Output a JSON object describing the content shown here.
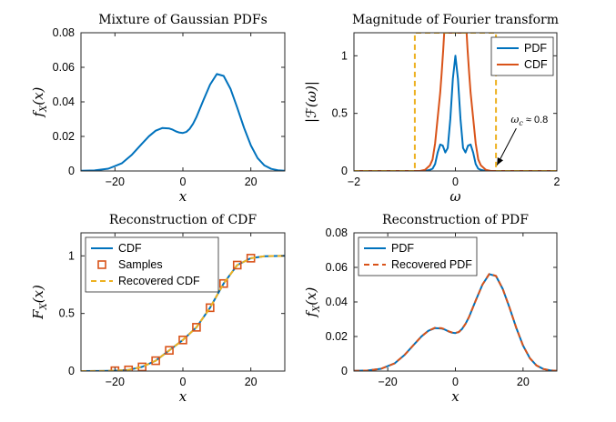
{
  "colors": {
    "blue": "#0072BD",
    "orange": "#D95319",
    "yellow": "#EDB120",
    "axis": "#262626"
  },
  "chart_data": [
    {
      "type": "line",
      "title": "Mixture of Gaussian PDFs",
      "xlabel": "x",
      "ylabel": "f_X(x)",
      "xlim": [
        -30,
        30
      ],
      "ylim": [
        0,
        0.08
      ],
      "xticks": [
        -20,
        0,
        20
      ],
      "yticks": [
        0,
        0.02,
        0.04,
        0.06,
        0.08
      ],
      "grid": false,
      "legend": null,
      "series": [
        {
          "name": "",
          "color": "#0072BD",
          "style": "solid",
          "x": [
            -30,
            -26,
            -22,
            -18,
            -15,
            -12,
            -10,
            -8,
            -6,
            -4,
            -3,
            -2,
            -1,
            0,
            1,
            2,
            3,
            4,
            6,
            8,
            10,
            12,
            14,
            16,
            18,
            20,
            22,
            24,
            26,
            28,
            30
          ],
          "y": [
            0.0001,
            0.0003,
            0.0013,
            0.0044,
            0.0094,
            0.0159,
            0.0201,
            0.0233,
            0.0249,
            0.0246,
            0.0239,
            0.0229,
            0.0222,
            0.022,
            0.0226,
            0.0244,
            0.0273,
            0.0312,
            0.0408,
            0.05,
            0.0561,
            0.055,
            0.0476,
            0.0367,
            0.025,
            0.0148,
            0.0075,
            0.0032,
            0.0012,
            0.0004,
            0.0001
          ]
        }
      ]
    },
    {
      "type": "line",
      "title": "Magnitude of Fourier transform",
      "xlabel": "ω",
      "ylabel": "|F(ω)|",
      "xlim": [
        -2,
        2
      ],
      "ylim": [
        0,
        1.2
      ],
      "xticks": [
        -2,
        0,
        2
      ],
      "yticks": [
        0,
        0.5,
        1
      ],
      "grid": false,
      "legend": {
        "position": "top-right",
        "entries": [
          "PDF",
          "CDF"
        ]
      },
      "series": [
        {
          "name": "PDF",
          "color": "#0072BD",
          "style": "solid",
          "x": [
            -2,
            -0.6,
            -0.5,
            -0.45,
            -0.4,
            -0.35,
            -0.3,
            -0.25,
            -0.2,
            -0.15,
            -0.1,
            -0.05,
            0,
            0.05,
            0.1,
            0.15,
            0.2,
            0.25,
            0.3,
            0.35,
            0.4,
            0.45,
            0.5,
            0.6,
            2
          ],
          "y": [
            0,
            0,
            0.01,
            0.02,
            0.06,
            0.16,
            0.23,
            0.22,
            0.16,
            0.2,
            0.45,
            0.8,
            1,
            0.8,
            0.45,
            0.2,
            0.16,
            0.22,
            0.23,
            0.16,
            0.06,
            0.02,
            0.01,
            0,
            0
          ]
        },
        {
          "name": "CDF",
          "color": "#D95319",
          "style": "solid",
          "x": [
            -2,
            -0.7,
            -0.6,
            -0.5,
            -0.45,
            -0.4,
            -0.35,
            -0.3,
            -0.27,
            -0.24,
            -0.22,
            -0.2,
            0.2,
            0.22,
            0.24,
            0.27,
            0.3,
            0.35,
            0.4,
            0.45,
            0.5,
            0.6,
            0.7,
            2
          ],
          "y": [
            0,
            0,
            0.01,
            0.05,
            0.1,
            0.24,
            0.46,
            0.68,
            0.85,
            1.05,
            1.2,
            1.2,
            1.2,
            1.2,
            1.05,
            0.85,
            0.68,
            0.46,
            0.24,
            0.1,
            0.05,
            0.01,
            0,
            0
          ]
        },
        {
          "name": "",
          "color": "#EDB120",
          "style": "dashed",
          "x": [
            -2,
            -0.8,
            -0.8,
            0.8,
            0.8,
            2
          ],
          "y": [
            0,
            0,
            1.2,
            1.2,
            0,
            0
          ]
        }
      ],
      "annotation": {
        "text": "ω_c ≈ 0.8",
        "arrow_from": [
          1.2,
          0.37
        ],
        "arrow_to": [
          0.82,
          0.05
        ]
      }
    },
    {
      "type": "line",
      "title": "Reconstruction of CDF",
      "xlabel": "x",
      "ylabel": "F_X(x)",
      "xlim": [
        -30,
        30
      ],
      "ylim": [
        0,
        1.2
      ],
      "xticks": [
        -20,
        0,
        20
      ],
      "yticks": [
        0,
        0.5,
        1
      ],
      "grid": false,
      "legend": {
        "position": "top-left",
        "entries": [
          "CDF",
          "Samples",
          "Recovered CDF"
        ]
      },
      "series": [
        {
          "name": "CDF",
          "color": "#0072BD",
          "style": "solid",
          "x": [
            -30,
            -24,
            -20,
            -16,
            -12,
            -8,
            -4,
            0,
            4,
            8,
            12,
            16,
            20,
            24,
            30
          ],
          "y": [
            0,
            0.001,
            0.003,
            0.01,
            0.036,
            0.09,
            0.18,
            0.27,
            0.38,
            0.55,
            0.76,
            0.92,
            0.98,
            0.997,
            1
          ]
        },
        {
          "name": "Samples",
          "color": "#D95319",
          "style": "markers",
          "x": [
            -20,
            -16,
            -12,
            -8,
            -4,
            0,
            4,
            8,
            12,
            16,
            20
          ],
          "y": [
            0.003,
            0.01,
            0.036,
            0.09,
            0.18,
            0.27,
            0.38,
            0.55,
            0.76,
            0.92,
            0.98
          ]
        },
        {
          "name": "Recovered CDF",
          "color": "#EDB120",
          "style": "dashed",
          "x": [
            -30,
            -24,
            -20,
            -16,
            -12,
            -8,
            -4,
            0,
            4,
            8,
            12,
            16,
            20,
            24,
            30
          ],
          "y": [
            0,
            0.001,
            0.003,
            0.01,
            0.036,
            0.09,
            0.18,
            0.27,
            0.38,
            0.55,
            0.76,
            0.92,
            0.98,
            0.997,
            1
          ]
        }
      ]
    },
    {
      "type": "line",
      "title": "Reconstruction of PDF",
      "xlabel": "x",
      "ylabel": "f_X(x)",
      "xlim": [
        -30,
        30
      ],
      "ylim": [
        0,
        0.08
      ],
      "xticks": [
        -20,
        0,
        20
      ],
      "yticks": [
        0,
        0.02,
        0.04,
        0.06,
        0.08
      ],
      "grid": false,
      "legend": {
        "position": "top-left",
        "entries": [
          "PDF",
          "Recovered PDF"
        ]
      },
      "series": [
        {
          "name": "PDF",
          "color": "#0072BD",
          "style": "solid",
          "x": [
            -30,
            -26,
            -22,
            -18,
            -15,
            -12,
            -10,
            -8,
            -6,
            -4,
            -3,
            -2,
            -1,
            0,
            1,
            2,
            3,
            4,
            6,
            8,
            10,
            12,
            14,
            16,
            18,
            20,
            22,
            24,
            26,
            28,
            30
          ],
          "y": [
            0.0001,
            0.0003,
            0.0013,
            0.0044,
            0.0094,
            0.0159,
            0.0201,
            0.0233,
            0.0249,
            0.0246,
            0.0239,
            0.0229,
            0.0222,
            0.022,
            0.0226,
            0.0244,
            0.0273,
            0.0312,
            0.0408,
            0.05,
            0.0561,
            0.055,
            0.0476,
            0.0367,
            0.025,
            0.0148,
            0.0075,
            0.0032,
            0.0012,
            0.0004,
            0.0001
          ]
        },
        {
          "name": "Recovered PDF",
          "color": "#D95319",
          "style": "dashed",
          "x": [
            -30,
            -26,
            -22,
            -18,
            -15,
            -12,
            -10,
            -8,
            -6,
            -4,
            -3,
            -2,
            -1,
            0,
            1,
            2,
            3,
            4,
            6,
            8,
            10,
            12,
            14,
            16,
            18,
            20,
            22,
            24,
            26,
            28,
            30
          ],
          "y": [
            0.0001,
            0.0003,
            0.0013,
            0.0044,
            0.0094,
            0.0159,
            0.0201,
            0.0233,
            0.0251,
            0.0248,
            0.0241,
            0.023,
            0.0223,
            0.0221,
            0.0226,
            0.0244,
            0.0273,
            0.0312,
            0.0408,
            0.05,
            0.0562,
            0.0551,
            0.0476,
            0.0367,
            0.025,
            0.0148,
            0.0075,
            0.0032,
            0.0012,
            0.0004,
            0.0001
          ]
        }
      ]
    }
  ]
}
